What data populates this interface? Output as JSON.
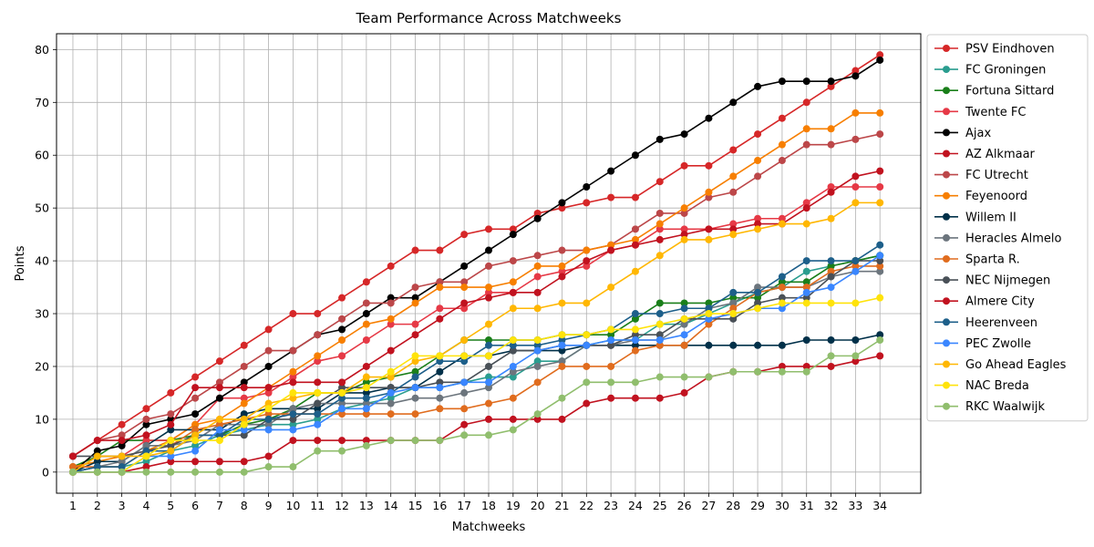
{
  "chart_data": {
    "type": "line",
    "title": "Team Performance Across Matchweeks",
    "xlabel": "Matchweeks",
    "ylabel": "Points",
    "x": [
      1,
      2,
      3,
      4,
      5,
      6,
      7,
      8,
      9,
      10,
      11,
      12,
      13,
      14,
      15,
      16,
      17,
      18,
      19,
      20,
      21,
      22,
      23,
      24,
      25,
      26,
      27,
      28,
      29,
      30,
      31,
      32,
      33,
      34
    ],
    "ylim": [
      -4,
      83
    ],
    "yticks": [
      0,
      10,
      20,
      30,
      40,
      50,
      60,
      70,
      80
    ],
    "grid": true,
    "legend": "outside-right",
    "series": [
      {
        "name": "PSV Eindhoven",
        "color": "#d62728",
        "values": [
          3,
          6,
          9,
          12,
          15,
          18,
          21,
          24,
          27,
          30,
          30,
          33,
          36,
          39,
          42,
          42,
          45,
          46,
          46,
          49,
          50,
          51,
          52,
          52,
          55,
          58,
          58,
          61,
          64,
          67,
          70,
          73,
          76,
          79
        ]
      },
      {
        "name": "FC Groningen",
        "color": "#2a9d8f",
        "values": [
          0,
          1,
          1,
          2,
          4,
          5,
          7,
          8,
          9,
          9,
          10,
          12,
          13,
          14,
          16,
          16,
          17,
          18,
          18,
          21,
          21,
          24,
          25,
          25,
          28,
          28,
          30,
          32,
          34,
          35,
          38,
          39,
          40,
          41
        ]
      },
      {
        "name": "Fortuna Sittard",
        "color": "#1a7f1a",
        "values": [
          1,
          3,
          6,
          6,
          6,
          7,
          7,
          9,
          10,
          12,
          15,
          15,
          17,
          18,
          19,
          22,
          25,
          25,
          25,
          25,
          26,
          26,
          26,
          29,
          32,
          32,
          32,
          33,
          33,
          36,
          36,
          39,
          40,
          41
        ]
      },
      {
        "name": "Twente FC",
        "color": "#e63946",
        "values": [
          0,
          3,
          3,
          6,
          6,
          9,
          14,
          14,
          15,
          18,
          21,
          22,
          25,
          28,
          28,
          31,
          31,
          34,
          34,
          37,
          38,
          39,
          42,
          43,
          46,
          46,
          46,
          47,
          48,
          48,
          51,
          54,
          54,
          54
        ]
      },
      {
        "name": "Ajax",
        "color": "#000000",
        "values": [
          0,
          4,
          5,
          9,
          10,
          11,
          14,
          17,
          20,
          23,
          26,
          27,
          30,
          33,
          33,
          36,
          39,
          42,
          45,
          48,
          51,
          54,
          57,
          60,
          63,
          64,
          67,
          70,
          73,
          74,
          74,
          74,
          75,
          78
        ]
      },
      {
        "name": "AZ Alkmaar",
        "color": "#c1121f",
        "values": [
          0,
          0,
          0,
          1,
          2,
          2,
          2,
          2,
          3,
          6,
          6,
          6,
          6,
          6,
          6,
          6,
          9,
          10,
          10,
          10,
          10,
          13,
          14,
          14,
          14,
          15,
          18,
          19,
          19,
          20,
          20,
          20,
          21,
          22
        ]
      },
      {
        "name": "FC Utrecht",
        "color": "#bc4749",
        "values": [
          3,
          6,
          7,
          10,
          11,
          14,
          17,
          20,
          23,
          23,
          26,
          29,
          32,
          32,
          35,
          36,
          36,
          39,
          40,
          41,
          42,
          42,
          43,
          46,
          49,
          49,
          52,
          53,
          56,
          59,
          62,
          62,
          63,
          64
        ]
      },
      {
        "name": "Feyenoord",
        "color": "#f77f00",
        "values": [
          1,
          2,
          3,
          4,
          6,
          9,
          10,
          13,
          16,
          19,
          22,
          25,
          28,
          29,
          32,
          35,
          35,
          35,
          36,
          39,
          39,
          42,
          43,
          44,
          47,
          50,
          53,
          56,
          59,
          62,
          65,
          65,
          68,
          68
        ]
      },
      {
        "name": "Willem II",
        "color": "#003049",
        "values": [
          0,
          2,
          2,
          5,
          8,
          8,
          8,
          11,
          12,
          12,
          12,
          15,
          15,
          16,
          16,
          19,
          22,
          22,
          23,
          23,
          23,
          24,
          24,
          24,
          24,
          24,
          24,
          24,
          24,
          24,
          25,
          25,
          25,
          26
        ]
      },
      {
        "name": "Heracles Almelo",
        "color": "#6c757d",
        "values": [
          0,
          1,
          2,
          5,
          5,
          6,
          9,
          9,
          9,
          12,
          13,
          13,
          13,
          13,
          14,
          14,
          15,
          16,
          19,
          20,
          21,
          24,
          24,
          25,
          25,
          28,
          31,
          32,
          35,
          35,
          35,
          37,
          38,
          38
        ]
      },
      {
        "name": "Sparta R.",
        "color": "#e06c1e",
        "values": [
          1,
          1,
          1,
          4,
          5,
          8,
          9,
          10,
          11,
          11,
          11,
          11,
          11,
          11,
          11,
          12,
          12,
          13,
          14,
          17,
          20,
          20,
          20,
          23,
          24,
          24,
          28,
          31,
          34,
          35,
          35,
          38,
          39,
          39
        ]
      },
      {
        "name": "NEC Nijmegen",
        "color": "#495057",
        "values": [
          3,
          3,
          3,
          4,
          5,
          7,
          7,
          7,
          10,
          10,
          13,
          16,
          16,
          16,
          16,
          17,
          17,
          20,
          23,
          23,
          24,
          24,
          24,
          26,
          26,
          29,
          29,
          29,
          32,
          33,
          33,
          37,
          40,
          40
        ]
      },
      {
        "name": "Almere City",
        "color": "#c1121f",
        "values": [
          3,
          6,
          6,
          7,
          9,
          16,
          16,
          16,
          16,
          17,
          17,
          17,
          20,
          23,
          26,
          29,
          32,
          33,
          34,
          34,
          37,
          40,
          42,
          43,
          44,
          45,
          46,
          46,
          47,
          47,
          50,
          53,
          56,
          57
        ]
      },
      {
        "name": "Heerenveen",
        "color": "#1d5f8a",
        "values": [
          0,
          1,
          1,
          4,
          4,
          7,
          7,
          10,
          10,
          11,
          11,
          14,
          14,
          15,
          18,
          21,
          21,
          24,
          24,
          24,
          25,
          26,
          27,
          30,
          30,
          31,
          31,
          34,
          34,
          37,
          40,
          40,
          40,
          43
        ]
      },
      {
        "name": "PEC Zwolle",
        "color": "#3a86ff",
        "values": [
          0,
          0,
          0,
          3,
          3,
          4,
          8,
          8,
          8,
          8,
          9,
          12,
          12,
          15,
          16,
          16,
          17,
          17,
          20,
          23,
          24,
          24,
          25,
          25,
          25,
          26,
          29,
          30,
          31,
          31,
          34,
          35,
          38,
          41
        ]
      },
      {
        "name": "Go Ahead Eagles",
        "color": "#ffb703",
        "values": [
          0,
          3,
          3,
          3,
          4,
          7,
          10,
          10,
          13,
          14,
          15,
          15,
          18,
          18,
          21,
          22,
          25,
          28,
          31,
          31,
          32,
          32,
          35,
          38,
          41,
          44,
          44,
          45,
          46,
          47,
          47,
          48,
          51,
          51
        ]
      },
      {
        "name": "NAC Breda",
        "color": "#ffe30a",
        "values": [
          0,
          0,
          0,
          3,
          6,
          6,
          6,
          9,
          12,
          15,
          15,
          15,
          16,
          19,
          22,
          22,
          22,
          22,
          25,
          25,
          26,
          26,
          27,
          27,
          28,
          29,
          30,
          30,
          31,
          32,
          32,
          32,
          32,
          33
        ]
      },
      {
        "name": "RKC Waalwijk",
        "color": "#90be6d",
        "values": [
          0,
          0,
          0,
          0,
          0,
          0,
          0,
          0,
          1,
          1,
          4,
          4,
          5,
          6,
          6,
          6,
          7,
          7,
          8,
          11,
          14,
          17,
          17,
          17,
          18,
          18,
          18,
          19,
          19,
          19,
          19,
          22,
          22,
          25
        ]
      }
    ]
  }
}
